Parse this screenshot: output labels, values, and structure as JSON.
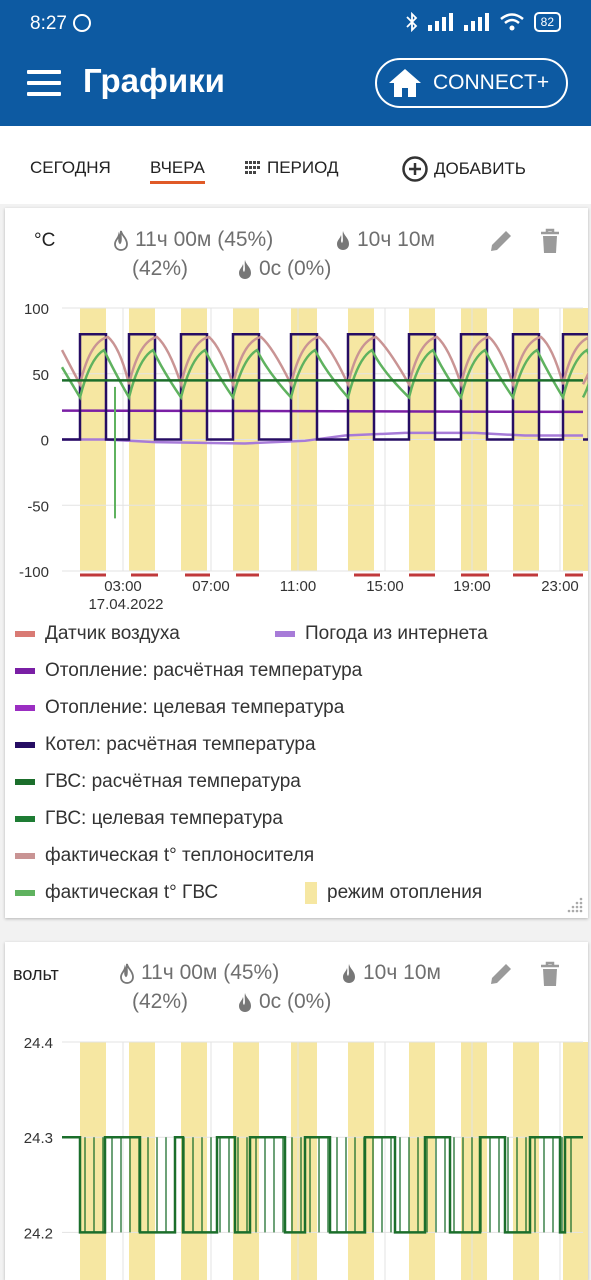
{
  "status_bar": {
    "time": "8:27",
    "battery": "82"
  },
  "header": {
    "title": "Графики",
    "connect_label": "CONNECT+"
  },
  "tabs": [
    {
      "label": "СЕГОДНЯ",
      "active": false
    },
    {
      "label": "ВЧЕРА",
      "active": true
    },
    {
      "label": "ПЕРИОД",
      "active": false
    },
    {
      "label": "ДОБАВИТЬ",
      "active": false
    }
  ],
  "card1": {
    "unit": "°C",
    "stat1": "11ч 00м (45%)",
    "stat2": "10ч 10м",
    "stat3": "(42%)",
    "stat4": "0с (0%)",
    "legend": [
      {
        "label": "Датчик воздуха",
        "color": "#d97a74"
      },
      {
        "label": "Погода из интернета",
        "color": "#a77bd8"
      },
      {
        "label": "Отопление: расчётная температура",
        "color": "#7a1fa5"
      },
      {
        "label": "Отопление: целевая температура",
        "color": "#9b2ec2"
      },
      {
        "label": "Котел: расчётная температура",
        "color": "#260d63"
      },
      {
        "label": "ГВС: расчётная температура",
        "color": "#1b6e2b"
      },
      {
        "label": "ГВС: целевая температура",
        "color": "#1e7c34"
      },
      {
        "label": "фактическая t° теплоносителя",
        "color": "#c99494"
      },
      {
        "label": "фактическая t° ГВС",
        "color": "#5fb25f"
      },
      {
        "label": "режим отопления",
        "color": "#f6e7a2"
      }
    ]
  },
  "chart_data": [
    {
      "type": "line",
      "ylim": [
        -100,
        100
      ],
      "yticks": [
        "100",
        "50",
        "0",
        "-50",
        "-100"
      ],
      "xticks": [
        "03:00",
        "07:00",
        "11:00",
        "15:00",
        "19:00",
        "23:00"
      ],
      "date_label": "17.04.2022",
      "series": [
        {
          "name": "Котел: расчётная температура",
          "pattern": "square",
          "low": 0,
          "high": 80
        },
        {
          "name": "ГВС: расчётная температура",
          "values_flat": 45
        },
        {
          "name": "Отопление: расчётная температура",
          "values_flat": 22
        },
        {
          "name": "Погода из интернета",
          "range": [
            -3,
            6
          ]
        },
        {
          "name": "фактическая t° теплоносителя",
          "range": [
            35,
            78
          ]
        },
        {
          "name": "фактическая t° ГВС",
          "range": [
            30,
            70
          ]
        }
      ]
    },
    {
      "type": "line",
      "ylim": [
        24.15,
        24.4
      ],
      "yticks": [
        "24.4",
        "24.3",
        "24.2"
      ],
      "series": [
        {
          "name": "вольт",
          "low": 24.2,
          "high": 24.3
        }
      ]
    }
  ],
  "card2": {
    "unit": "вольт",
    "stat1": "11ч 00м (45%)",
    "stat2": "10ч 10м",
    "stat3": "(42%)",
    "stat4": "0с (0%)"
  }
}
